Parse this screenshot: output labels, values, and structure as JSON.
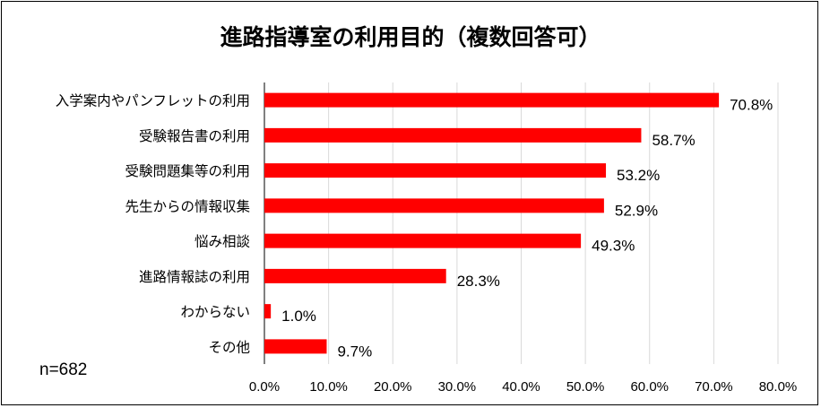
{
  "chart_data": {
    "type": "bar",
    "orientation": "horizontal",
    "title": "進路指導室の利用目的（複数回答可）",
    "categories": [
      "入学案内やパンフレットの利用",
      "受験報告書の利用",
      "受験問題集等の利用",
      "先生からの情報収集",
      "悩み相談",
      "進路情報誌の利用",
      "わからない",
      "その他"
    ],
    "values": [
      70.8,
      58.7,
      53.2,
      52.9,
      49.3,
      28.3,
      1.0,
      9.7
    ],
    "data_labels": [
      "70.8%",
      "58.7%",
      "53.2%",
      "52.9%",
      "49.3%",
      "28.3%",
      "1.0%",
      "9.7%"
    ],
    "xlim": [
      0,
      80
    ],
    "xticks": [
      "0.0%",
      "10.0%",
      "20.0%",
      "30.0%",
      "40.0%",
      "50.0%",
      "60.0%",
      "70.0%",
      "80.0%"
    ],
    "grid": true,
    "bar_color": "#ff0000",
    "note": "n=682"
  }
}
